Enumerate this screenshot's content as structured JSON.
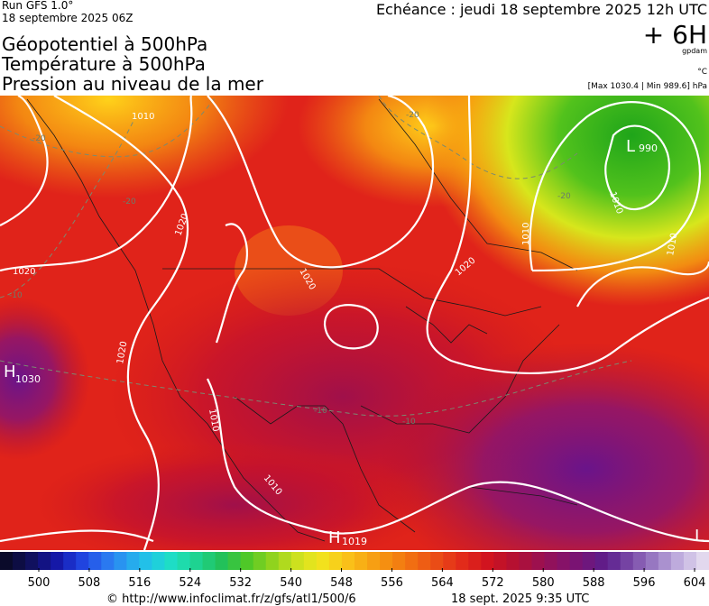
{
  "header": {
    "run": "Run GFS 1.0°",
    "run_date": "18 septembre 2025 06Z",
    "valid": "Echéance : jeudi 18 septembre 2025 12h UTC",
    "lead": "+ 6H",
    "unit_geo": "gpdam",
    "unit_temp": "°C",
    "pressure_range": "[Max 1030.4 | Min 989.6] hPa",
    "titles": [
      "Géopotentiel à 500hPa",
      "Température à 500hPa",
      "Pression au niveau de la mer"
    ]
  },
  "map": {
    "centers": [
      {
        "letter": "H",
        "value": "1030"
      },
      {
        "letter": "L",
        "value": "990"
      },
      {
        "letter": "H",
        "value": "1019"
      },
      {
        "letter": "L",
        "value": ""
      }
    ],
    "isobar_labels": [
      "1010",
      "1020",
      "1020",
      "1020",
      "1020",
      "1020",
      "1010",
      "1010",
      "1010",
      "1010",
      "1010"
    ],
    "temp_labels": [
      "-20",
      "-20",
      "-20",
      "-20",
      "-10",
      "-10",
      "-10"
    ]
  },
  "colorbar": {
    "ticks": [
      500,
      508,
      516,
      524,
      532,
      540,
      548,
      556,
      564,
      572,
      580,
      588,
      596,
      604
    ]
  },
  "footer": {
    "source": "© http://www.infoclimat.fr/z/gfs/atl1/500/6",
    "generated": "18 sept. 2025  9:35 UTC"
  }
}
